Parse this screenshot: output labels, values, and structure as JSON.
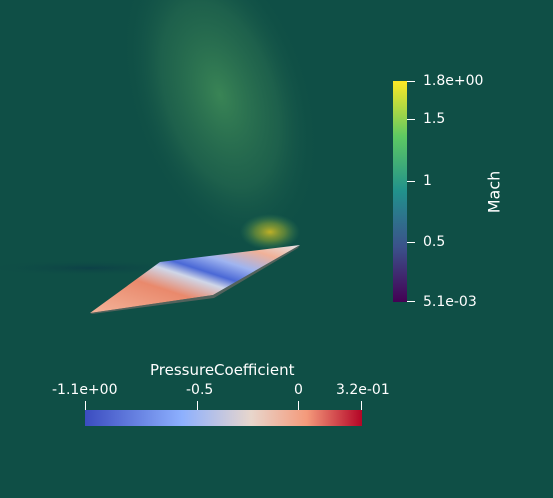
{
  "colors": {
    "background": "#0f4f46",
    "mach_colormap": [
      "#440154",
      "#3b518b",
      "#21918c",
      "#5ec962",
      "#fde725"
    ],
    "pressure_colormap": [
      "#3b4cc0",
      "#8db0fe",
      "#dddddd",
      "#f49a7b",
      "#b40426"
    ]
  },
  "mach_legend": {
    "title": "Mach",
    "max_label": "1.8e+00",
    "min_label": "5.1e-03",
    "ticks": [
      "1.5",
      "1",
      "0.5"
    ]
  },
  "pressure_legend": {
    "title": "PressureCoefficient",
    "min_label": "-1.1e+00",
    "max_label": "3.2e-01",
    "ticks": [
      "-0.5",
      "0"
    ]
  }
}
